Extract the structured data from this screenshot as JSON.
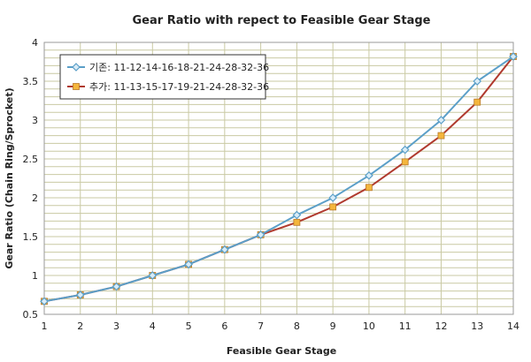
{
  "chart_data": {
    "type": "line",
    "title": "Gear Ratio with repect to Feasible Gear Stage",
    "xlabel": "Feasible Gear Stage",
    "ylabel": "Gear Ratio (Chain Ring/Sprocket)",
    "x": [
      1,
      2,
      3,
      4,
      5,
      6,
      7,
      8,
      9,
      10,
      11,
      12,
      13,
      14
    ],
    "xlim": [
      1,
      14
    ],
    "ylim": [
      0.5,
      4
    ],
    "yticks": [
      "0.5",
      "1",
      "1.5",
      "2",
      "2.5",
      "3",
      "3.5",
      "4"
    ],
    "xticks": [
      "1",
      "2",
      "3",
      "4",
      "5",
      "6",
      "7",
      "8",
      "9",
      "10",
      "11",
      "12",
      "13",
      "14"
    ],
    "grid": true,
    "legend_position": "top-left",
    "series": [
      {
        "name": "기존: 11-12-14-16-18-21-24-28-32-36",
        "color": "#5b9fc8",
        "marker": "diamond",
        "values": [
          0.667,
          0.75,
          0.857,
          1.0,
          1.143,
          1.333,
          1.524,
          1.778,
          2.0,
          2.286,
          2.618,
          3.0,
          3.5,
          3.818
        ]
      },
      {
        "name": "추가: 11-13-15-17-19-21-24-28-32-36",
        "color": "#b03a2e",
        "markerColor": "#f4b63c",
        "marker": "square",
        "values": [
          0.667,
          0.75,
          0.857,
          1.0,
          1.143,
          1.333,
          1.524,
          1.684,
          1.882,
          2.133,
          2.462,
          2.8,
          3.231,
          3.818
        ]
      }
    ]
  }
}
